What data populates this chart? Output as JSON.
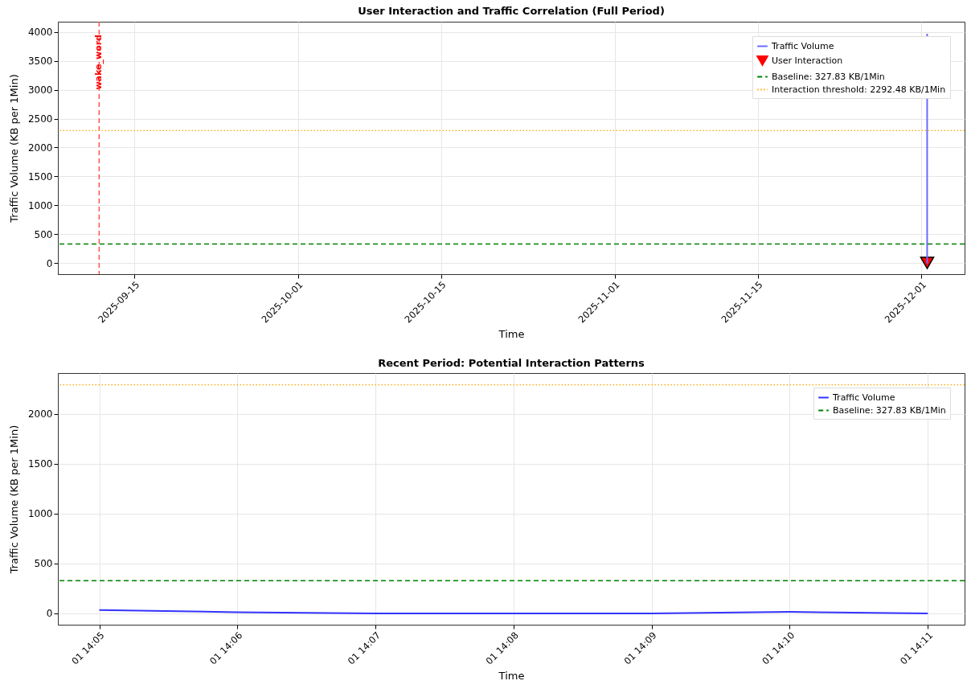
{
  "chart_data": [
    {
      "type": "line",
      "title": "User Interaction and Traffic Correlation (Full Period)",
      "xlabel": "Time",
      "ylabel": "Traffic Volume (KB per 1Min)",
      "series": [
        {
          "name": "Traffic Volume",
          "color": "#6b6bff",
          "x": [
            "2025-12-01T14:04",
            "2025-12-01T14:05",
            "2025-12-01T14:06",
            "2025-12-01T14:07",
            "2025-12-01T14:08",
            "2025-12-01T14:09",
            "2025-12-01T14:10",
            "2025-12-01T14:11"
          ],
          "values": [
            3970,
            35,
            12,
            0,
            0,
            0,
            15,
            0
          ]
        },
        {
          "name": "User Interaction",
          "type": "scatter",
          "marker": "triangle",
          "color": "#ff0000",
          "x": [
            "2025-12-01T14:05"
          ],
          "values": [
            0
          ]
        }
      ],
      "xlim": [
        "2025-09-07T12:00",
        "2025-12-05T06:00"
      ],
      "xticks": [
        "2025-09-15",
        "2025-10-01",
        "2025-10-15",
        "2025-11-01",
        "2025-11-15",
        "2025-12-01"
      ],
      "ylim": [
        -195,
        4180
      ],
      "yticks": [
        0,
        500,
        1000,
        1500,
        2000,
        2500,
        3000,
        3500,
        4000
      ],
      "ref_lines": [
        {
          "axis": "x",
          "value": "2025-09-11T13:00",
          "label": "wake_word",
          "color": "#ff5050",
          "line_style": "dashed"
        },
        {
          "axis": "y",
          "value": 327.83,
          "label": "Baseline: 327.83 KB/1Min",
          "color": "#008000",
          "line_style": "dashed"
        },
        {
          "axis": "y",
          "value": 2292.48,
          "label": "Interaction threshold: 2292.48 KB/1Min",
          "color": "#ffa500",
          "line_style": "dotted"
        }
      ],
      "grid": true,
      "legend": "top right"
    },
    {
      "type": "line",
      "title": "Recent Period: Potential Interaction Patterns",
      "xlabel": "Time",
      "ylabel": "Traffic Volume (KB per 1Min)",
      "series": [
        {
          "name": "Traffic Volume",
          "color": "#3333ff",
          "x": [
            "2025-12-01T14:05",
            "2025-12-01T14:06",
            "2025-12-01T14:07",
            "2025-12-01T14:08",
            "2025-12-01T14:09",
            "2025-12-01T14:10",
            "2025-12-01T14:11"
          ],
          "values": [
            35,
            12,
            0,
            0,
            0,
            15,
            0
          ]
        }
      ],
      "xlim": [
        "2025-12-01T14:04:42",
        "2025-12-01T14:11:16"
      ],
      "xticks": [
        {
          "value": "2025-12-01T14:05",
          "label": "01 14:05"
        },
        {
          "value": "2025-12-01T14:06",
          "label": "01 14:06"
        },
        {
          "value": "2025-12-01T14:07",
          "label": "01 14:07"
        },
        {
          "value": "2025-12-01T14:08",
          "label": "01 14:08"
        },
        {
          "value": "2025-12-01T14:09",
          "label": "01 14:09"
        },
        {
          "value": "2025-12-01T14:10",
          "label": "01 14:10"
        },
        {
          "value": "2025-12-01T14:11",
          "label": "01 14:11"
        }
      ],
      "ylim": [
        -113,
        2410
      ],
      "yticks": [
        0,
        500,
        1000,
        1500,
        2000
      ],
      "ref_lines": [
        {
          "axis": "y",
          "value": 327.83,
          "label": "Baseline: 327.83 KB/1Min",
          "color": "#008000",
          "line_style": "dashed"
        },
        {
          "axis": "y",
          "value": 2292.48,
          "color": "#ffa500",
          "line_style": "dotted"
        }
      ],
      "grid": true,
      "legend": "top right"
    }
  ]
}
